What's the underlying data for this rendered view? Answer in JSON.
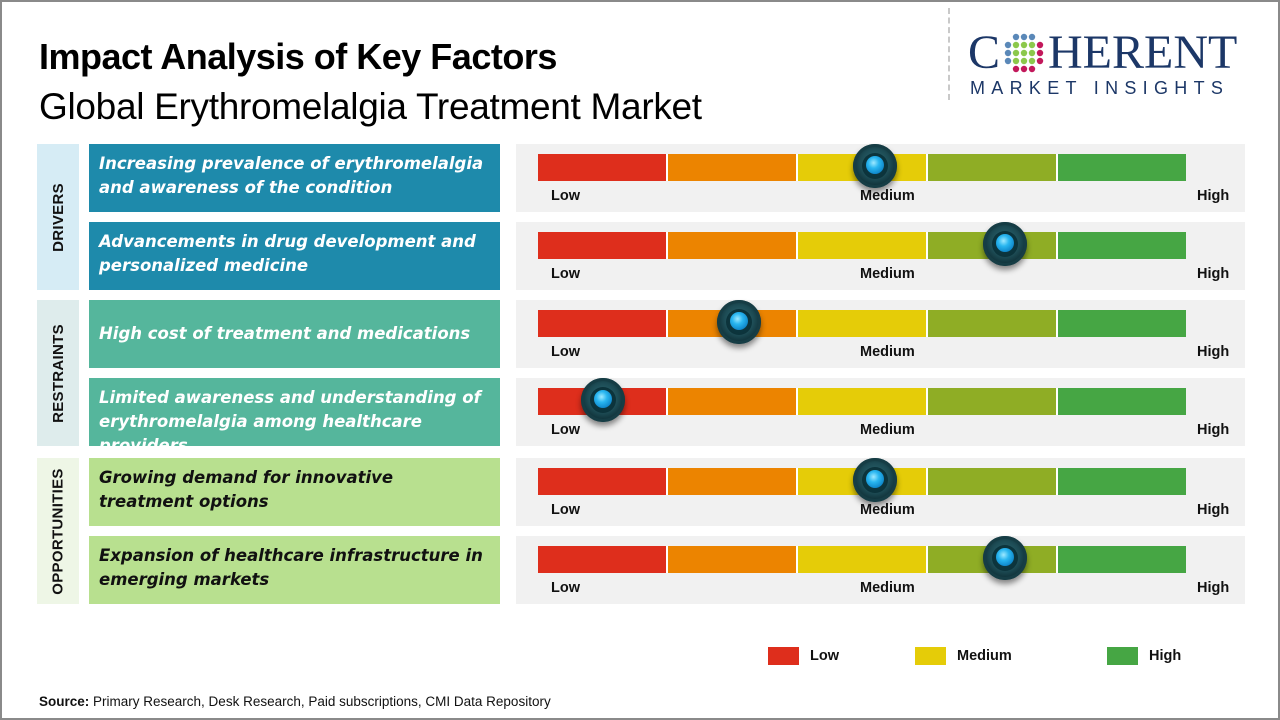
{
  "header": {
    "title": "Impact Analysis of Key Factors",
    "subtitle": "Global Erythromelalgia Treatment Market"
  },
  "logo": {
    "main_left": "C",
    "main_right": "HERENT",
    "sub": "MARKET INSIGHTS",
    "icon": "globe-dots-icon"
  },
  "scale": {
    "low_label": "Low",
    "medium_label": "Medium",
    "high_label": "High",
    "segment_colors": [
      "#de2e1c",
      "#ec8400",
      "#e5cc08",
      "#8fad25",
      "#46a644"
    ]
  },
  "categories": [
    {
      "name": "DRIVERS",
      "label_bg": "#d6ecf5",
      "box_color": "#1e8aab",
      "text_color": "#ffffff",
      "factors": [
        {
          "text": "Increasing prevalence of erythromelalgia and awareness of the condition",
          "impact_percent": 52
        },
        {
          "text": "Advancements in drug development and personalized medicine",
          "impact_percent": 72
        }
      ]
    },
    {
      "name": "RESTRAINTS",
      "label_bg": "#deecec",
      "box_color": "#55b69c",
      "text_color": "#ffffff",
      "factors": [
        {
          "text": "High cost of treatment and medications",
          "impact_percent": 31
        },
        {
          "text": "Limited awareness and understanding of erythromelalgia among healthcare providers",
          "impact_percent": 10
        }
      ]
    },
    {
      "name": "OPPORTUNITIES",
      "label_bg": "#eef6e6",
      "box_color": "#b8e08f",
      "text_color": "#111111",
      "factors": [
        {
          "text": "Growing demand for innovative treatment options",
          "impact_percent": 52
        },
        {
          "text": "Expansion of healthcare infrastructure in emerging markets",
          "impact_percent": 72
        }
      ]
    }
  ],
  "legend": [
    {
      "label": "Low",
      "color": "#de2e1c"
    },
    {
      "label": "Medium",
      "color": "#e5cc08"
    },
    {
      "label": "High",
      "color": "#46a644"
    }
  ],
  "footer": {
    "source_label": "Source:",
    "source_text": "Primary Research, Desk Research, Paid subscriptions, CMI Data Repository"
  }
}
